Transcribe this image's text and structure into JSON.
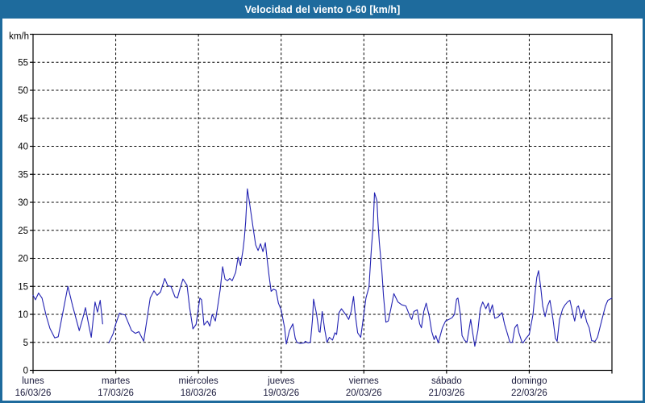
{
  "header": {
    "title": "Velocidad del viento 0-60 [km/h]"
  },
  "chart_data": {
    "type": "line",
    "title": "Velocidad del viento 0-60 [km/h]",
    "ylabel": "km/h",
    "xlabel": "",
    "ylim": [
      0,
      60
    ],
    "yticks": [
      0,
      5,
      10,
      15,
      20,
      25,
      30,
      35,
      40,
      45,
      50,
      55
    ],
    "x_unit": "hours_from_monday_00h",
    "x_range": [
      0,
      168
    ],
    "grid": "dashed",
    "legend_position": "none",
    "colors": {
      "line": "#2222b2",
      "frame_accent": "#1e6b9d",
      "grid": "#000000",
      "axis_text": "#000000",
      "day_label_text": "#1a1a3c"
    },
    "days": [
      {
        "name": "lunes",
        "date": "16/03/26",
        "t": 0
      },
      {
        "name": "martes",
        "date": "17/03/26",
        "t": 24
      },
      {
        "name": "miércoles",
        "date": "18/03/26",
        "t": 48
      },
      {
        "name": "jueves",
        "date": "19/03/26",
        "t": 72
      },
      {
        "name": "viernes",
        "date": "20/03/26",
        "t": 96
      },
      {
        "name": "sábado",
        "date": "21/03/26",
        "t": 120
      },
      {
        "name": "domingo",
        "date": "22/03/26",
        "t": 144
      }
    ],
    "series": [
      {
        "name": "wind_speed_kmh",
        "segments": [
          [
            [
              0,
              13.4
            ],
            [
              0.7,
              12.6
            ],
            [
              1.6,
              13.8
            ],
            [
              2.6,
              12.9
            ],
            [
              3.8,
              9.8
            ],
            [
              4.9,
              7.5
            ],
            [
              6.3,
              5.8
            ],
            [
              7.3,
              6.0
            ],
            [
              8.7,
              10.5
            ],
            [
              10.1,
              15.0
            ],
            [
              11.5,
              11.5
            ],
            [
              13.4,
              7.1
            ],
            [
              14.5,
              9.5
            ],
            [
              15.2,
              11.2
            ],
            [
              16.2,
              8.0
            ],
            [
              16.9,
              5.9
            ],
            [
              18.0,
              12.2
            ],
            [
              18.7,
              10.4
            ],
            [
              19.5,
              12.5
            ],
            [
              20.2,
              8.3
            ]
          ],
          [
            [
              22.0,
              4.9
            ],
            [
              23.2,
              6.5
            ],
            [
              24.0,
              8.3
            ],
            [
              25.1,
              10.2
            ],
            [
              26.0,
              10.0
            ],
            [
              26.7,
              9.9
            ],
            [
              28.6,
              7.1
            ],
            [
              29.7,
              6.6
            ],
            [
              30.7,
              6.9
            ],
            [
              32.1,
              5.2
            ],
            [
              33.0,
              8.8
            ],
            [
              34.0,
              12.9
            ],
            [
              35.1,
              14.2
            ],
            [
              36.0,
              13.4
            ],
            [
              37.0,
              14.0
            ],
            [
              38.2,
              16.4
            ],
            [
              39.1,
              15.1
            ],
            [
              40.0,
              15.0
            ],
            [
              41.2,
              13.1
            ],
            [
              41.9,
              12.9
            ],
            [
              42.6,
              14.5
            ],
            [
              43.5,
              16.3
            ],
            [
              44.7,
              15.2
            ],
            [
              45.4,
              11.4
            ],
            [
              46.4,
              7.4
            ],
            [
              47.3,
              8.2
            ],
            [
              48.4,
              12.9
            ],
            [
              48.9,
              12.6
            ],
            [
              49.6,
              8.1
            ],
            [
              50.6,
              8.8
            ],
            [
              51.3,
              7.9
            ],
            [
              52.0,
              10.0
            ],
            [
              52.9,
              8.8
            ],
            [
              53.6,
              11.5
            ],
            [
              54.3,
              14.4
            ],
            [
              55.0,
              18.5
            ],
            [
              55.7,
              16.3
            ],
            [
              56.4,
              16.0
            ],
            [
              57.1,
              16.4
            ],
            [
              57.8,
              16.0
            ],
            [
              58.8,
              17.5
            ],
            [
              59.5,
              20.2
            ],
            [
              60.2,
              18.7
            ],
            [
              60.9,
              21.4
            ],
            [
              61.3,
              23.5
            ],
            [
              61.7,
              26.5
            ],
            [
              62.2,
              32.4
            ],
            [
              62.8,
              30.0
            ],
            [
              63.2,
              28.3
            ],
            [
              63.9,
              25.3
            ],
            [
              64.6,
              22.4
            ],
            [
              65.3,
              21.4
            ],
            [
              66.0,
              22.6
            ],
            [
              66.7,
              21.2
            ],
            [
              67.4,
              22.8
            ],
            [
              68.0,
              19.5
            ],
            [
              68.5,
              16.8
            ],
            [
              69.1,
              14.1
            ],
            [
              69.8,
              14.5
            ],
            [
              70.5,
              14.3
            ],
            [
              71.2,
              12.0
            ],
            [
              72.0,
              10.8
            ],
            [
              73.0,
              7.6
            ],
            [
              73.5,
              4.7
            ],
            [
              74.4,
              7.1
            ],
            [
              75.4,
              8.3
            ],
            [
              76.1,
              5.7
            ],
            [
              76.6,
              5.0
            ],
            [
              77.5,
              4.8
            ],
            [
              78.7,
              4.9
            ],
            [
              79.0,
              5.2
            ],
            [
              79.8,
              4.9
            ],
            [
              80.5,
              5.0
            ],
            [
              81.1,
              9.1
            ],
            [
              81.4,
              12.7
            ],
            [
              82.3,
              10.0
            ],
            [
              83.0,
              6.9
            ],
            [
              83.3,
              6.8
            ],
            [
              83.9,
              10.5
            ],
            [
              84.6,
              7.4
            ],
            [
              85.3,
              5.0
            ],
            [
              86.0,
              5.9
            ],
            [
              86.9,
              5.4
            ],
            [
              87.6,
              6.7
            ],
            [
              88.1,
              6.4
            ],
            [
              88.8,
              10.3
            ],
            [
              89.5,
              11.0
            ],
            [
              90.7,
              10.0
            ],
            [
              91.6,
              9.1
            ],
            [
              92.3,
              10.5
            ],
            [
              93.0,
              13.2
            ],
            [
              93.5,
              10.0
            ],
            [
              94.2,
              6.7
            ],
            [
              95.1,
              5.9
            ],
            [
              95.8,
              9.1
            ],
            [
              96.6,
              12.9
            ],
            [
              97.5,
              14.9
            ],
            [
              97.8,
              18.0
            ],
            [
              98.2,
              21.9
            ],
            [
              98.7,
              25.7
            ],
            [
              99.1,
              31.7
            ],
            [
              99.8,
              30.3
            ],
            [
              100.1,
              26.5
            ],
            [
              100.5,
              22.8
            ],
            [
              101.2,
              18.0
            ],
            [
              101.7,
              13.4
            ],
            [
              102.4,
              8.6
            ],
            [
              103.1,
              8.8
            ],
            [
              104.0,
              11.5
            ],
            [
              104.7,
              13.7
            ],
            [
              105.9,
              12.2
            ],
            [
              107.0,
              11.7
            ],
            [
              108.2,
              11.5
            ],
            [
              109.4,
              9.6
            ],
            [
              109.9,
              9.1
            ],
            [
              110.5,
              10.5
            ],
            [
              111.5,
              10.8
            ],
            [
              112.2,
              8.3
            ],
            [
              112.7,
              7.6
            ],
            [
              113.4,
              10.5
            ],
            [
              114.1,
              12.0
            ],
            [
              115.0,
              9.6
            ],
            [
              115.7,
              6.9
            ],
            [
              116.4,
              5.5
            ],
            [
              116.9,
              6.2
            ],
            [
              117.6,
              4.9
            ],
            [
              118.8,
              7.6
            ],
            [
              119.7,
              8.8
            ],
            [
              120.7,
              9.1
            ],
            [
              121.6,
              9.4
            ],
            [
              122.3,
              10.0
            ],
            [
              122.9,
              12.7
            ],
            [
              123.3,
              12.9
            ],
            [
              124.0,
              10.0
            ],
            [
              124.5,
              6.2
            ],
            [
              125.2,
              5.4
            ],
            [
              125.9,
              5.0
            ],
            [
              126.8,
              8.3
            ],
            [
              127.0,
              9.1
            ],
            [
              127.6,
              6.7
            ],
            [
              128.2,
              4.3
            ],
            [
              129.1,
              7.1
            ],
            [
              129.8,
              11.0
            ],
            [
              130.5,
              12.2
            ],
            [
              131.4,
              11.0
            ],
            [
              132.1,
              12.0
            ],
            [
              132.6,
              10.3
            ],
            [
              133.3,
              11.7
            ],
            [
              134.0,
              9.3
            ],
            [
              134.9,
              9.5
            ],
            [
              136.1,
              10.3
            ],
            [
              136.8,
              8.3
            ],
            [
              137.5,
              6.9
            ],
            [
              138.4,
              5.0
            ],
            [
              139.1,
              5.0
            ],
            [
              139.8,
              7.6
            ],
            [
              140.5,
              8.2
            ],
            [
              141.0,
              6.7
            ],
            [
              141.9,
              5.0
            ],
            [
              142.2,
              4.9
            ],
            [
              142.7,
              5.4
            ],
            [
              143.3,
              5.9
            ],
            [
              144.0,
              6.4
            ],
            [
              145.1,
              10.0
            ],
            [
              145.8,
              14.4
            ],
            [
              146.2,
              16.6
            ],
            [
              146.7,
              17.8
            ],
            [
              147.4,
              14.4
            ],
            [
              147.9,
              11.5
            ],
            [
              148.6,
              9.6
            ],
            [
              149.3,
              11.5
            ],
            [
              150.0,
              12.5
            ],
            [
              150.9,
              9.1
            ],
            [
              151.6,
              5.7
            ],
            [
              152.1,
              5.2
            ],
            [
              152.8,
              9.1
            ],
            [
              153.7,
              11.0
            ],
            [
              154.4,
              11.7
            ],
            [
              155.1,
              12.2
            ],
            [
              155.8,
              12.5
            ],
            [
              156.8,
              9.8
            ],
            [
              157.2,
              8.8
            ],
            [
              157.9,
              11.3
            ],
            [
              158.3,
              11.5
            ],
            [
              158.7,
              10.3
            ],
            [
              159.1,
              9.3
            ],
            [
              159.8,
              10.8
            ],
            [
              160.7,
              8.6
            ],
            [
              161.4,
              7.6
            ],
            [
              162.1,
              5.3
            ],
            [
              163.1,
              5.2
            ],
            [
              163.8,
              5.9
            ],
            [
              164.5,
              7.6
            ],
            [
              165.4,
              9.8
            ],
            [
              166.1,
              11.5
            ],
            [
              166.8,
              12.5
            ],
            [
              168.0,
              12.9
            ]
          ]
        ]
      }
    ]
  }
}
